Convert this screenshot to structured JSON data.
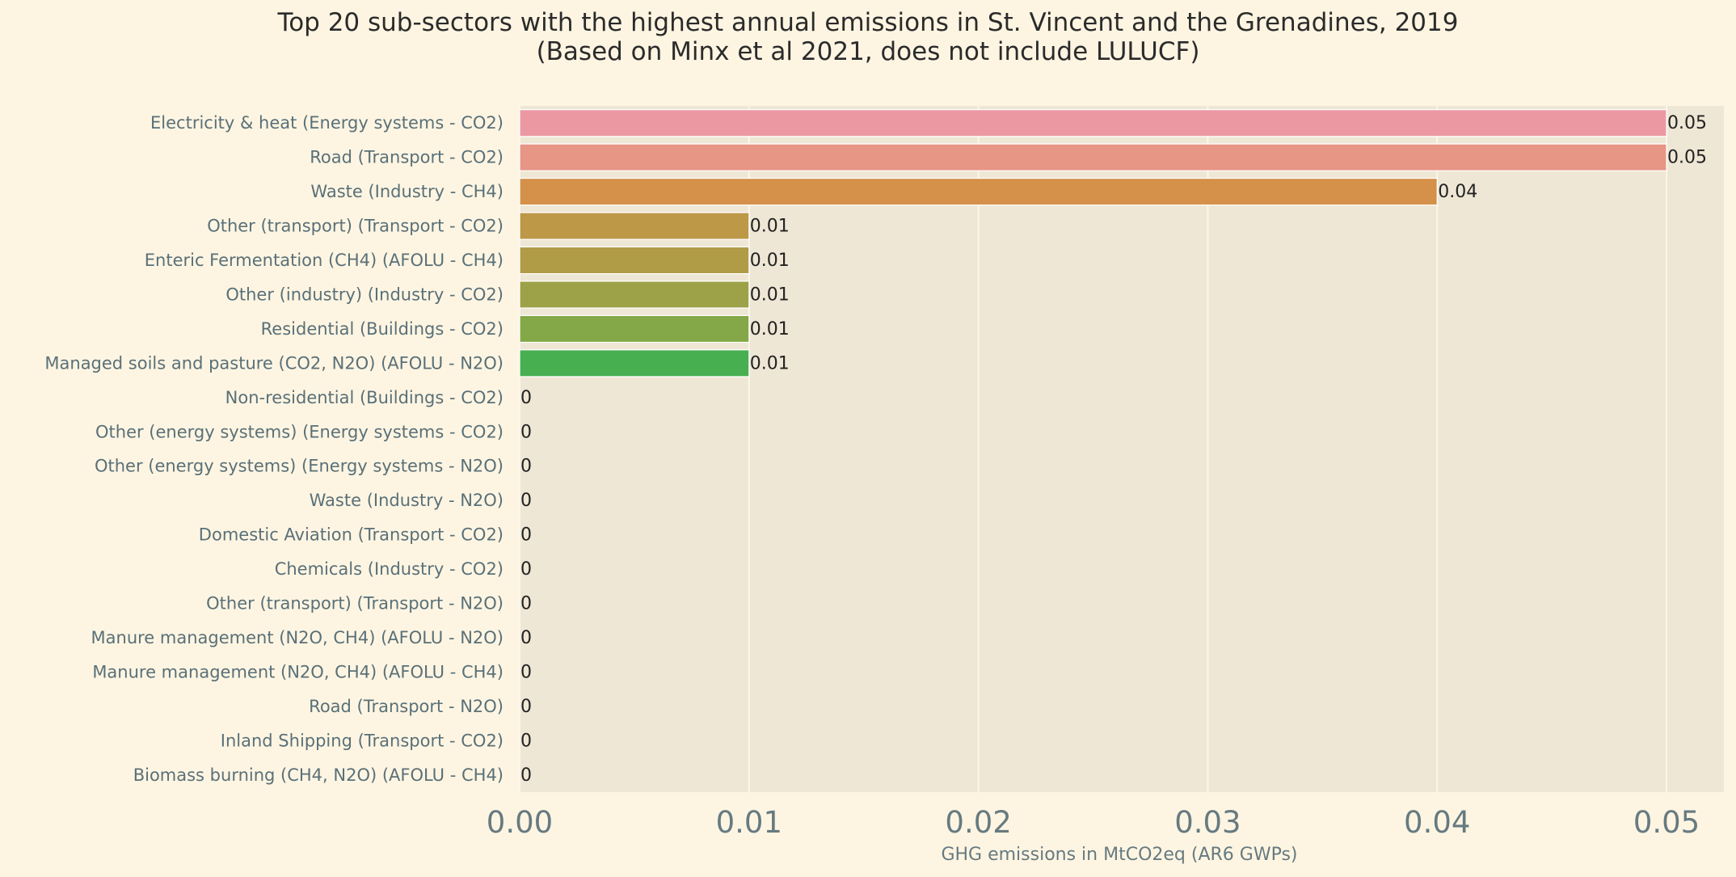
{
  "chart_data": {
    "type": "bar",
    "orientation": "horizontal",
    "title": "Top 20 sub-sectors with the highest annual emissions in St. Vincent and the Grenadines, 2019",
    "subtitle": "(Based on Minx et al 2021, does not include LULUCF)",
    "xlabel": "GHG emissions in MtCO2eq (AR6 GWPs)",
    "ylabel": "",
    "xlim": [
      0,
      0.0525
    ],
    "xticks": [
      "0.00",
      "0.01",
      "0.02",
      "0.03",
      "0.04",
      "0.05"
    ],
    "grid": true,
    "categories": [
      "Electricity & heat (Energy systems - CO2)",
      "Road (Transport - CO2)",
      "Waste (Industry - CH4)",
      "Other (transport) (Transport - CO2)",
      "Enteric Fermentation (CH4) (AFOLU - CH4)",
      "Other (industry) (Industry - CO2)",
      "Residential (Buildings - CO2)",
      "Managed soils and pasture (CO2, N2O) (AFOLU - N2O)",
      "Non-residential (Buildings - CO2)",
      "Other (energy systems) (Energy systems - CO2)",
      "Other (energy systems) (Energy systems - N2O)",
      "Waste (Industry - N2O)",
      "Domestic Aviation (Transport - CO2)",
      "Chemicals (Industry - CO2)",
      "Other (transport) (Transport - N2O)",
      "Manure management (N2O, CH4) (AFOLU - N2O)",
      "Manure management (N2O, CH4) (AFOLU - CH4)",
      "Road (Transport - N2O)",
      "Inland Shipping (Transport - CO2)",
      "Biomass burning (CH4, N2O) (AFOLU - CH4)"
    ],
    "values": [
      0.05,
      0.05,
      0.04,
      0.01,
      0.01,
      0.01,
      0.01,
      0.01,
      0,
      0,
      0,
      0,
      0,
      0,
      0,
      0,
      0,
      0,
      0,
      0
    ],
    "value_labels": [
      "0.05",
      "0.05",
      "0.04",
      "0.01",
      "0.01",
      "0.01",
      "0.01",
      "0.01",
      "0",
      "0",
      "0",
      "0",
      "0",
      "0",
      "0",
      "0",
      "0",
      "0",
      "0",
      "0"
    ],
    "colors": [
      "#eb98a2",
      "#e79585",
      "#d59149",
      "#bc9847",
      "#b09b47",
      "#9da147",
      "#84a847",
      "#47af50",
      "#47b08a",
      "#47aea0",
      "#47acaf",
      "#47a9bf",
      "#5aa1d8",
      "#8f97e8",
      "#b68bea",
      "#d283e4",
      "#e57ed4",
      "#ec86bd",
      "#ec8dae",
      "#eb93a4"
    ]
  }
}
